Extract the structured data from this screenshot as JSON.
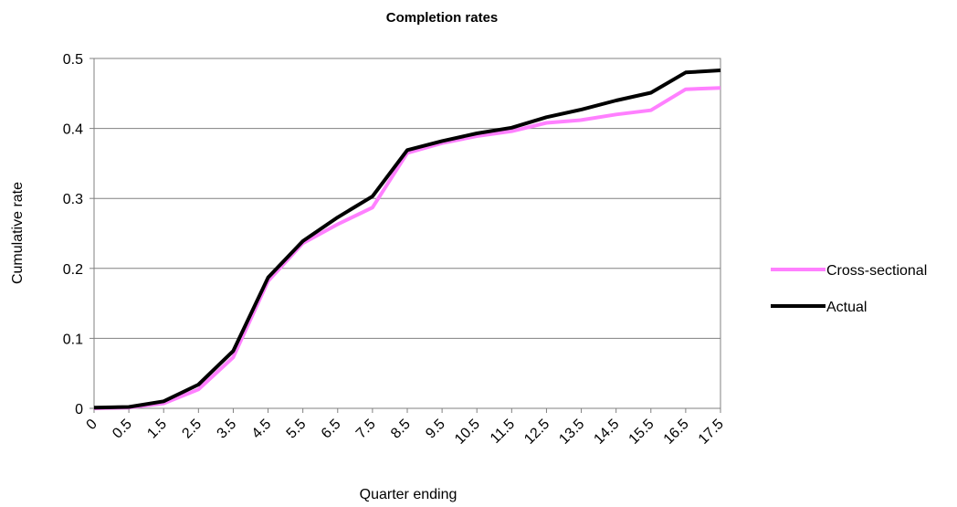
{
  "chart_data": {
    "type": "line",
    "title": "Completion rates",
    "xlabel": "Quarter ending",
    "ylabel": "Cumulative rate",
    "x": [
      "0",
      "0.5",
      "1.5",
      "2.5",
      "3.5",
      "4.5",
      "5.5",
      "6.5",
      "7.5",
      "8.5",
      "9.5",
      "10.5",
      "11.5",
      "12.5",
      "13.5",
      "14.5",
      "15.5",
      "16.5",
      "17.5"
    ],
    "ylim": [
      0,
      0.5
    ],
    "yticks": [
      "0",
      "0.1",
      "0.2",
      "0.3",
      "0.4",
      "0.5"
    ],
    "grid": true,
    "legend_position": "right",
    "series": [
      {
        "name": "Cross-sectional",
        "color": "#ff80ff",
        "values": [
          0,
          0.001,
          0.007,
          0.027,
          0.073,
          0.182,
          0.236,
          0.263,
          0.287,
          0.365,
          0.379,
          0.389,
          0.396,
          0.408,
          0.412,
          0.42,
          0.426,
          0.456,
          0.458
        ]
      },
      {
        "name": "Actual",
        "color": "#000000",
        "values": [
          0.001,
          0.002,
          0.01,
          0.034,
          0.082,
          0.187,
          0.239,
          0.273,
          0.303,
          0.369,
          0.382,
          0.393,
          0.401,
          0.416,
          0.427,
          0.44,
          0.451,
          0.48,
          0.483
        ]
      }
    ]
  }
}
